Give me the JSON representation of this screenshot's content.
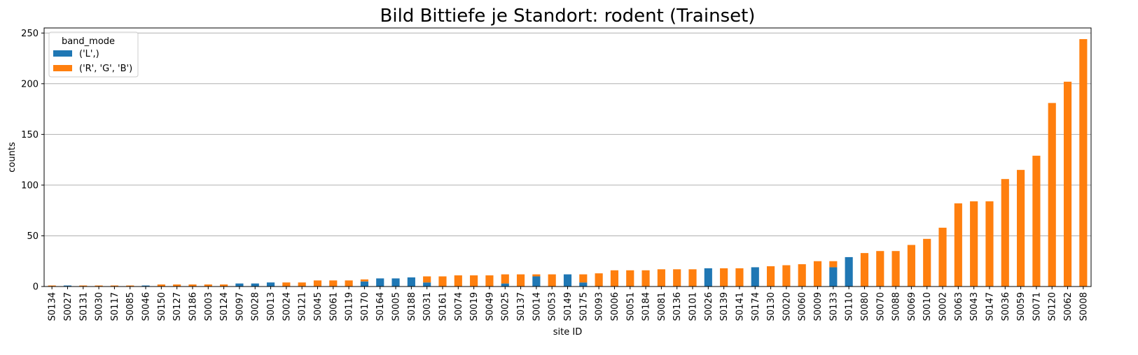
{
  "chart_data": {
    "type": "bar",
    "stacked": true,
    "title": "Bild Bittiefe je Standort: rodent (Trainset)",
    "xlabel": "site ID",
    "ylabel": "counts",
    "ylim": [
      0,
      255
    ],
    "yticks": [
      0,
      50,
      100,
      150,
      200,
      250
    ],
    "grid": "horizontal",
    "legend": {
      "title": "band_mode",
      "placement": "top-left"
    },
    "categories": [
      "S0134",
      "S0027",
      "S0131",
      "S0030",
      "S0117",
      "S0085",
      "S0046",
      "S0150",
      "S0127",
      "S0186",
      "S0003",
      "S0124",
      "S0097",
      "S0028",
      "S0013",
      "S0024",
      "S0121",
      "S0045",
      "S0061",
      "S0119",
      "S0170",
      "S0164",
      "S0005",
      "S0188",
      "S0031",
      "S0161",
      "S0074",
      "S0019",
      "S0049",
      "S0025",
      "S0137",
      "S0014",
      "S0053",
      "S0149",
      "S0175",
      "S0093",
      "S0006",
      "S0051",
      "S0184",
      "S0081",
      "S0136",
      "S0101",
      "S0026",
      "S0139",
      "S0141",
      "S0174",
      "S0130",
      "S0020",
      "S0060",
      "S0009",
      "S0133",
      "S0110",
      "S0080",
      "S0070",
      "S0088",
      "S0069",
      "S0010",
      "S0002",
      "S0063",
      "S0043",
      "S0147",
      "S0036",
      "S0059",
      "S0071",
      "S0120",
      "S0062",
      "S0008"
    ],
    "series": [
      {
        "name": "('L',)",
        "color": "#1f77b4",
        "values": [
          0,
          1,
          0,
          0,
          0,
          0,
          1,
          0,
          0,
          0,
          0,
          0,
          3,
          3,
          4,
          0,
          0,
          0,
          0,
          0,
          5,
          8,
          8,
          9,
          4,
          0,
          0,
          0,
          0,
          3,
          0,
          10,
          0,
          12,
          4,
          0,
          0,
          0,
          0,
          0,
          0,
          0,
          18,
          0,
          0,
          19,
          0,
          0,
          0,
          0,
          19,
          29,
          0,
          0,
          0,
          0,
          0,
          0,
          0,
          0,
          0,
          0,
          0,
          0,
          0,
          0,
          0
        ]
      },
      {
        "name": "('R', 'G', 'B')",
        "color": "#ff7f0e",
        "values": [
          1,
          0,
          1,
          1,
          1,
          1,
          0,
          2,
          2,
          2,
          2,
          2,
          0,
          0,
          0,
          4,
          4,
          6,
          6,
          6,
          2,
          0,
          0,
          0,
          6,
          10,
          11,
          11,
          11,
          9,
          12,
          2,
          12,
          0,
          8,
          13,
          16,
          16,
          16,
          17,
          17,
          17,
          0,
          18,
          18,
          0,
          20,
          21,
          22,
          25,
          6,
          0,
          33,
          35,
          35,
          41,
          47,
          58,
          82,
          84,
          84,
          106,
          115,
          129,
          181,
          202,
          244
        ]
      }
    ]
  }
}
